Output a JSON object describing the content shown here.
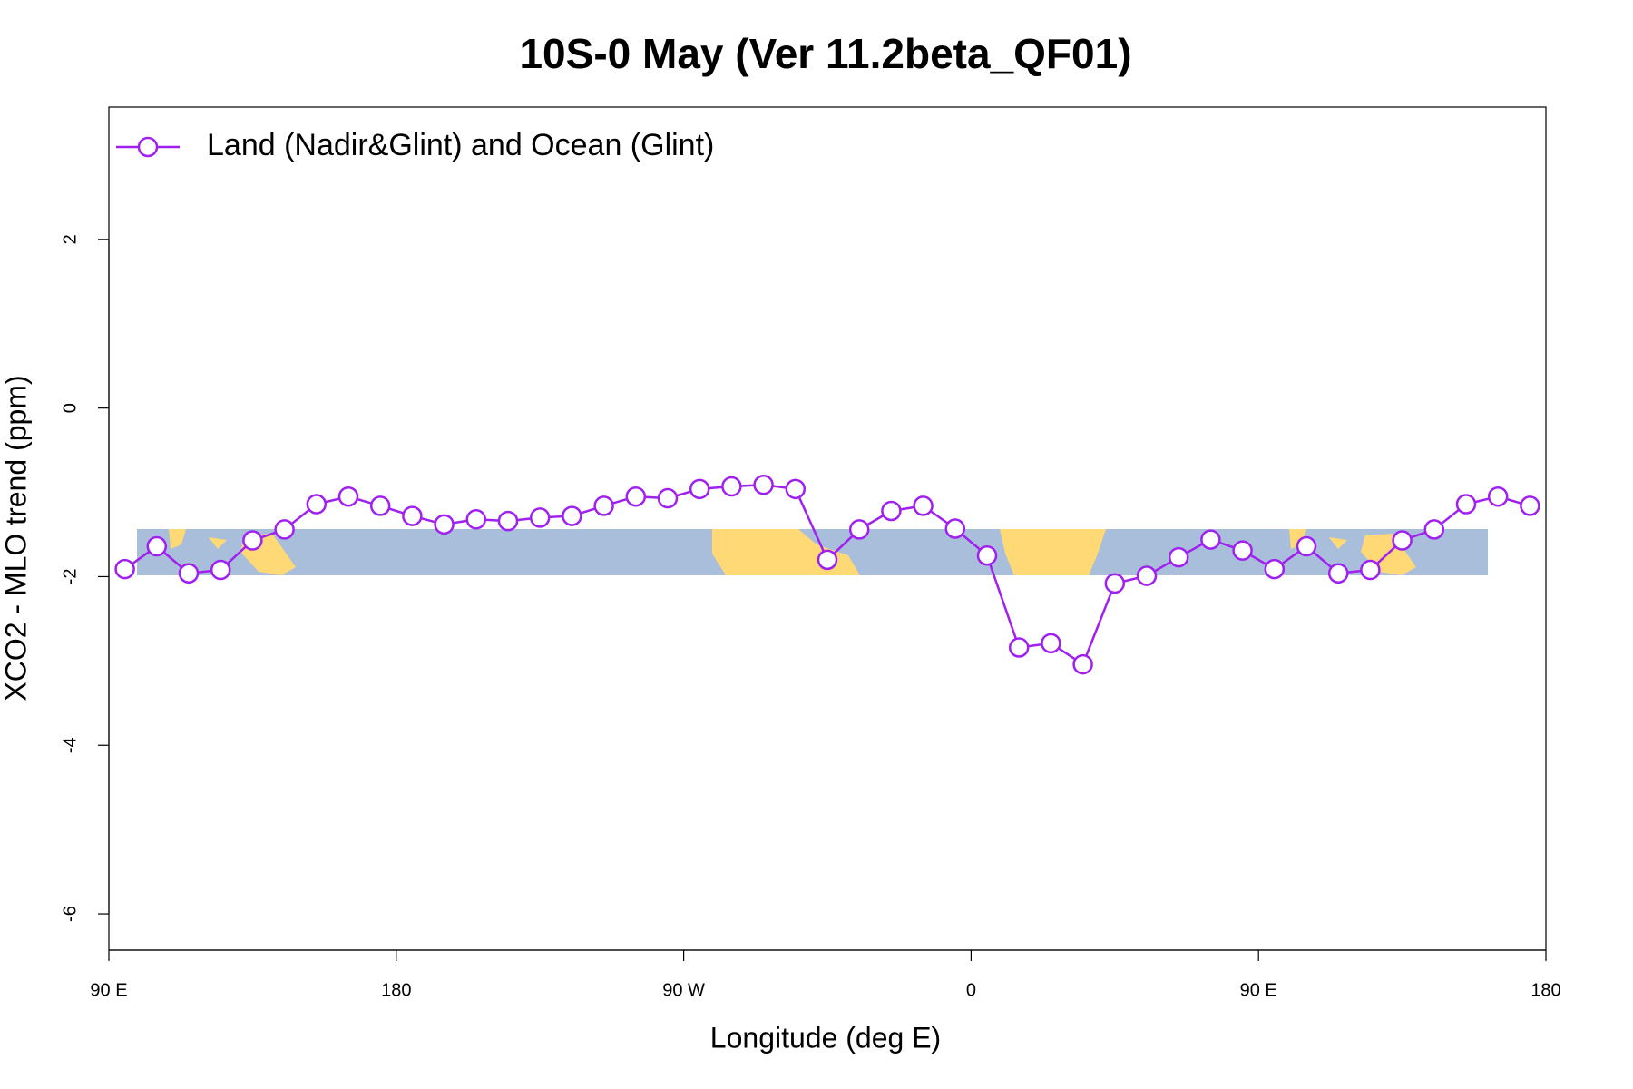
{
  "chart_data": {
    "type": "line",
    "title": "10S-0 May (Ver 11.2beta_QF01)",
    "x_label": "Longitude (deg E)",
    "y_label": "XCO2 - MLO trend (ppm)",
    "x": [
      95,
      105,
      115,
      125,
      135,
      145,
      155,
      165,
      175,
      185,
      195,
      205,
      215,
      225,
      235,
      245,
      255,
      265,
      275,
      285,
      295,
      305,
      315,
      325,
      335,
      345,
      355,
      365,
      375,
      385,
      395,
      405,
      415,
      425,
      435,
      445,
      455,
      465,
      475,
      485,
      495,
      505,
      515,
      525,
      535
    ],
    "series": [
      {
        "name": "Land (Nadir&Glint) and Ocean (Glint)",
        "color": "#a020f0",
        "values": [
          -1.91,
          -1.64,
          -1.96,
          -1.92,
          -1.57,
          -1.44,
          -1.14,
          -1.05,
          -1.16,
          -1.28,
          -1.38,
          -1.32,
          -1.34,
          -1.3,
          -1.28,
          -1.16,
          -1.05,
          -1.07,
          -0.96,
          -0.93,
          -0.91,
          -0.96,
          -1.8,
          -1.44,
          -1.22,
          -1.16,
          -1.43,
          -1.75,
          -2.84,
          -2.79,
          -3.04,
          -2.08,
          -1.99,
          -1.77,
          -1.56,
          -1.69,
          -1.91,
          -1.64,
          -1.96,
          -1.92,
          -1.57,
          -1.44,
          -1.14,
          -1.05,
          -1.16
        ]
      }
    ],
    "xlim": [
      90,
      540
    ],
    "xticks": [
      {
        "value": 90,
        "label": "90 E"
      },
      {
        "value": 180,
        "label": "180"
      },
      {
        "value": 270,
        "label": "90 W"
      },
      {
        "value": 360,
        "label": "0"
      },
      {
        "value": 450,
        "label": "90 E"
      },
      {
        "value": 540,
        "label": "180"
      }
    ],
    "ylim": [
      -6.43,
      3.57
    ],
    "yticks": [
      -6,
      -4,
      -2,
      0,
      2
    ],
    "legend": "topleft",
    "grid": false
  }
}
